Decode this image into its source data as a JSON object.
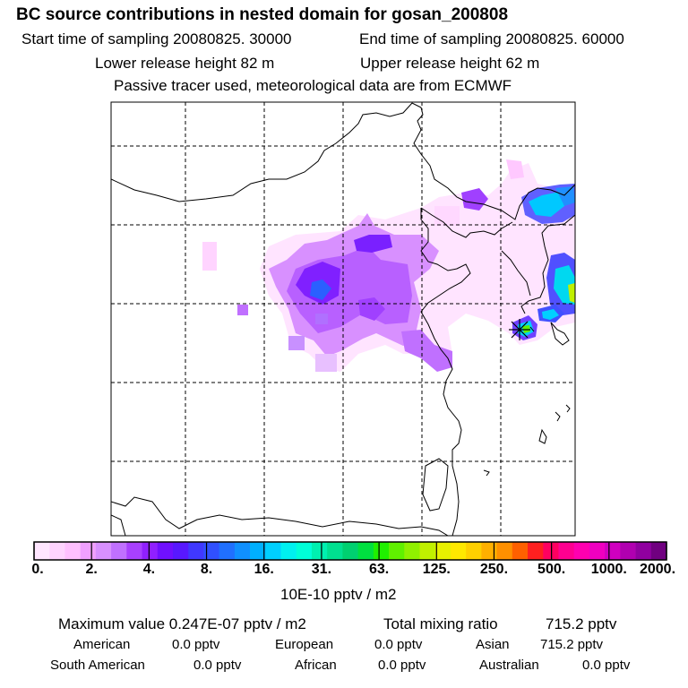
{
  "header": {
    "title": "BC  source contributions in nested domain for gosan_200808",
    "start_time": "Start time of sampling 20080825. 30000",
    "end_time": "End time of sampling 20080825. 60000",
    "lower_release": "Lower release height   82 m",
    "upper_release": "Upper release height   62 m",
    "tracer_note": "Passive tracer used, meteorological data are from ECMWF"
  },
  "colorbar": {
    "colors": [
      "#ffe6ff",
      "#ffd4ff",
      "#ffc0ff",
      "#f0a0ff",
      "#d890ff",
      "#c070ff",
      "#a840ff",
      "#9020ff",
      "#7010ff",
      "#5818ff",
      "#4038ff",
      "#3050ff",
      "#2070ff",
      "#1090ff",
      "#00b0ff",
      "#00d0ff",
      "#00f0f0",
      "#00ffd8",
      "#00f0b0",
      "#00e090",
      "#00d070",
      "#00e040",
      "#20f000",
      "#60f000",
      "#90f000",
      "#c0f000",
      "#e8f000",
      "#ffe800",
      "#ffd000",
      "#ffb000",
      "#ff9000",
      "#ff6000",
      "#ff2020",
      "#ff0060",
      "#ff0090",
      "#ff00b0",
      "#f000c0",
      "#d000c0",
      "#b000b0",
      "#9000a0",
      "#700080"
    ],
    "labels": [
      "0.",
      "2.",
      "4.",
      "8.",
      "16.",
      "31.",
      "63.",
      "125.",
      "250.",
      "500.",
      "1000.",
      "2000."
    ],
    "units": "10E-10 pptv / m2"
  },
  "summary": {
    "max_label": "Maximum value  0.247E-07 pptv / m2",
    "total_label": "Total mixing ratio",
    "total_value": "715.2 pptv",
    "american_label": "American",
    "american_value": "0.0 pptv",
    "european_label": "European",
    "european_value": "0.0 pptv",
    "asian_label": "Asian",
    "asian_value": "715.2 pptv",
    "south_american_label": "South American",
    "south_american_value": "0.0 pptv",
    "african_label": "African",
    "african_value": "0.0 pptv",
    "australian_label": "Australian",
    "australian_value": "0.0 pptv"
  }
}
